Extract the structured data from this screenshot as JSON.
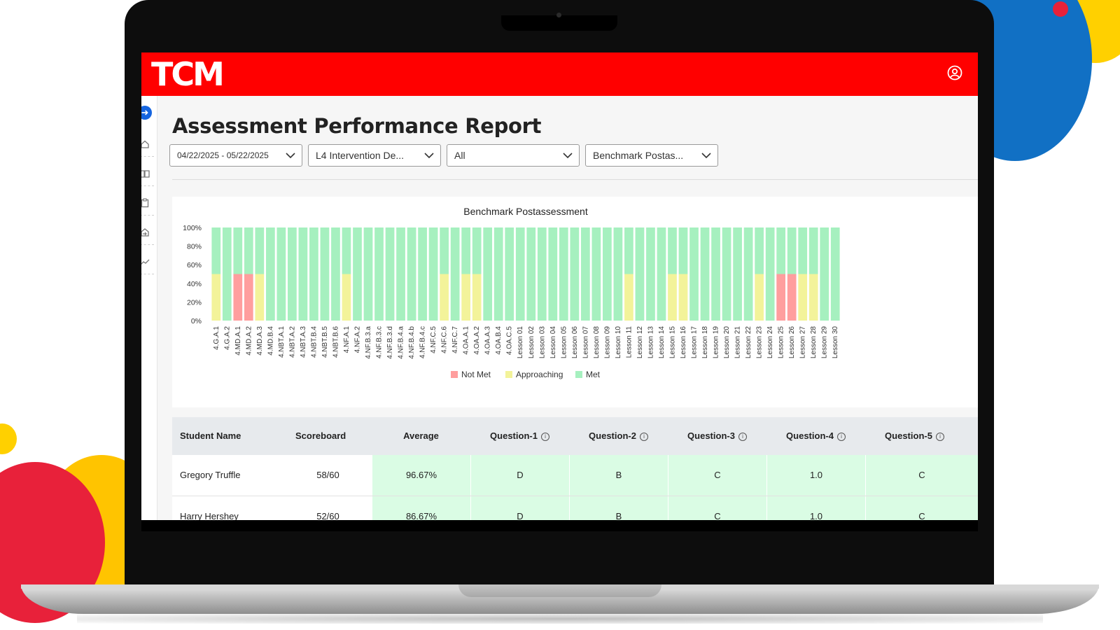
{
  "colors": {
    "brand_red": "#ff0000",
    "accent_blue": "#1565e0",
    "not_met": "#ff9e9e",
    "approaching": "#f3f39a",
    "met": "#a6f0bf",
    "cell_green": "#dafce4"
  },
  "header": {
    "logo_text": "TCM",
    "user_icon": "user-circle-icon"
  },
  "sidebar": {
    "toggle_icon": "arrow-right-circle-icon",
    "items": [
      {
        "icon": "home-icon"
      },
      {
        "icon": "book-icon"
      },
      {
        "icon": "clipboard-icon"
      },
      {
        "icon": "export-icon"
      },
      {
        "icon": "trend-line-icon"
      }
    ]
  },
  "page": {
    "title": "Assessment Performance Report"
  },
  "filters": {
    "date_range": "04/22/2025 - 05/22/2025",
    "program": "L4 Intervention De...",
    "group": "All",
    "assessment": "Benchmark Postas..."
  },
  "chart_data": {
    "type": "bar",
    "stacked": true,
    "title": "Benchmark Postassessment",
    "ylim": [
      0,
      100
    ],
    "y_ticks": [
      "100%",
      "80%",
      "60%",
      "40%",
      "20%",
      "0%"
    ],
    "categories": [
      "4.G.A.1",
      "4.G.A.2",
      "4.MD.A.1",
      "4.MD.A.2",
      "4.MD.A.3",
      "4.MD.B.4",
      "4.NBT.A.1",
      "4.NBT.A.2",
      "4.NBT.A.3",
      "4.NBT.B.4",
      "4.NBT.B.5",
      "4.NBT.B.6",
      "4.NF.A.1",
      "4.NF.A.2",
      "4.NF.B.3.a",
      "4.NF.B.3.c",
      "4.NF.B.3.d",
      "4.NF.B.4.a",
      "4.NF.B.4.b",
      "4.NF.B.4.c",
      "4.NF.C.5",
      "4.NF.C.6",
      "4.NF.C.7",
      "4.OA.A.1",
      "4.OA.A.2",
      "4.OA.A.3",
      "4.OA.B.4",
      "4.OA.C.5",
      "Lesson 01",
      "Lesson 02",
      "Lesson 03",
      "Lesson 04",
      "Lesson 05",
      "Lesson 06",
      "Lesson 07",
      "Lesson 08",
      "Lesson 09",
      "Lesson 10",
      "Lesson 11",
      "Lesson 12",
      "Lesson 13",
      "Lesson 14",
      "Lesson 15",
      "Lesson 16",
      "Lesson 17",
      "Lesson 18",
      "Lesson 19",
      "Lesson 20",
      "Lesson 21",
      "Lesson 22",
      "Lesson 23",
      "Lesson 24",
      "Lesson 25",
      "Lesson 26",
      "Lesson 27",
      "Lesson 28",
      "Lesson 29",
      "Lesson 30"
    ],
    "series": [
      {
        "name": "Not Met",
        "color": "#ff9e9e",
        "values": [
          0,
          0,
          50,
          50,
          0,
          0,
          0,
          0,
          0,
          0,
          0,
          0,
          0,
          0,
          0,
          0,
          0,
          0,
          0,
          0,
          0,
          0,
          0,
          0,
          0,
          0,
          0,
          0,
          0,
          0,
          0,
          0,
          0,
          0,
          0,
          0,
          0,
          0,
          0,
          0,
          0,
          0,
          0,
          0,
          0,
          0,
          0,
          0,
          0,
          0,
          0,
          0,
          50,
          50,
          0,
          0,
          0,
          0
        ]
      },
      {
        "name": "Approaching",
        "color": "#f3f39a",
        "values": [
          50,
          0,
          0,
          0,
          50,
          0,
          0,
          0,
          0,
          0,
          0,
          0,
          50,
          0,
          0,
          0,
          0,
          0,
          0,
          0,
          0,
          50,
          0,
          50,
          50,
          0,
          0,
          0,
          0,
          0,
          0,
          0,
          0,
          0,
          0,
          0,
          0,
          0,
          50,
          0,
          0,
          0,
          50,
          50,
          0,
          0,
          0,
          0,
          0,
          0,
          50,
          0,
          0,
          0,
          50,
          50,
          0,
          0
        ]
      },
      {
        "name": "Met",
        "color": "#a6f0bf",
        "values": [
          50,
          100,
          50,
          50,
          50,
          100,
          100,
          100,
          100,
          100,
          100,
          100,
          50,
          100,
          100,
          100,
          100,
          100,
          100,
          100,
          100,
          50,
          100,
          50,
          50,
          100,
          100,
          100,
          100,
          100,
          100,
          100,
          100,
          100,
          100,
          100,
          100,
          100,
          50,
          100,
          100,
          100,
          50,
          50,
          100,
          100,
          100,
          100,
          100,
          100,
          50,
          100,
          50,
          50,
          50,
          50,
          100,
          100
        ]
      }
    ],
    "legend": [
      "Not Met",
      "Approaching",
      "Met"
    ],
    "legend_position": "bottom-center",
    "grid": false
  },
  "table": {
    "headers": [
      "Student Name",
      "Scoreboard",
      "Average",
      "Question-1",
      "Question-2",
      "Question-3",
      "Question-4",
      "Question-5"
    ],
    "info_glyph": "i",
    "rows": [
      [
        "Gregory Truffle",
        "58/60",
        "96.67%",
        "D",
        "B",
        "C",
        "1.0",
        "C"
      ],
      [
        "Harry Hershey",
        "52/60",
        "86.67%",
        "D",
        "B",
        "C",
        "1.0",
        "C"
      ]
    ]
  }
}
